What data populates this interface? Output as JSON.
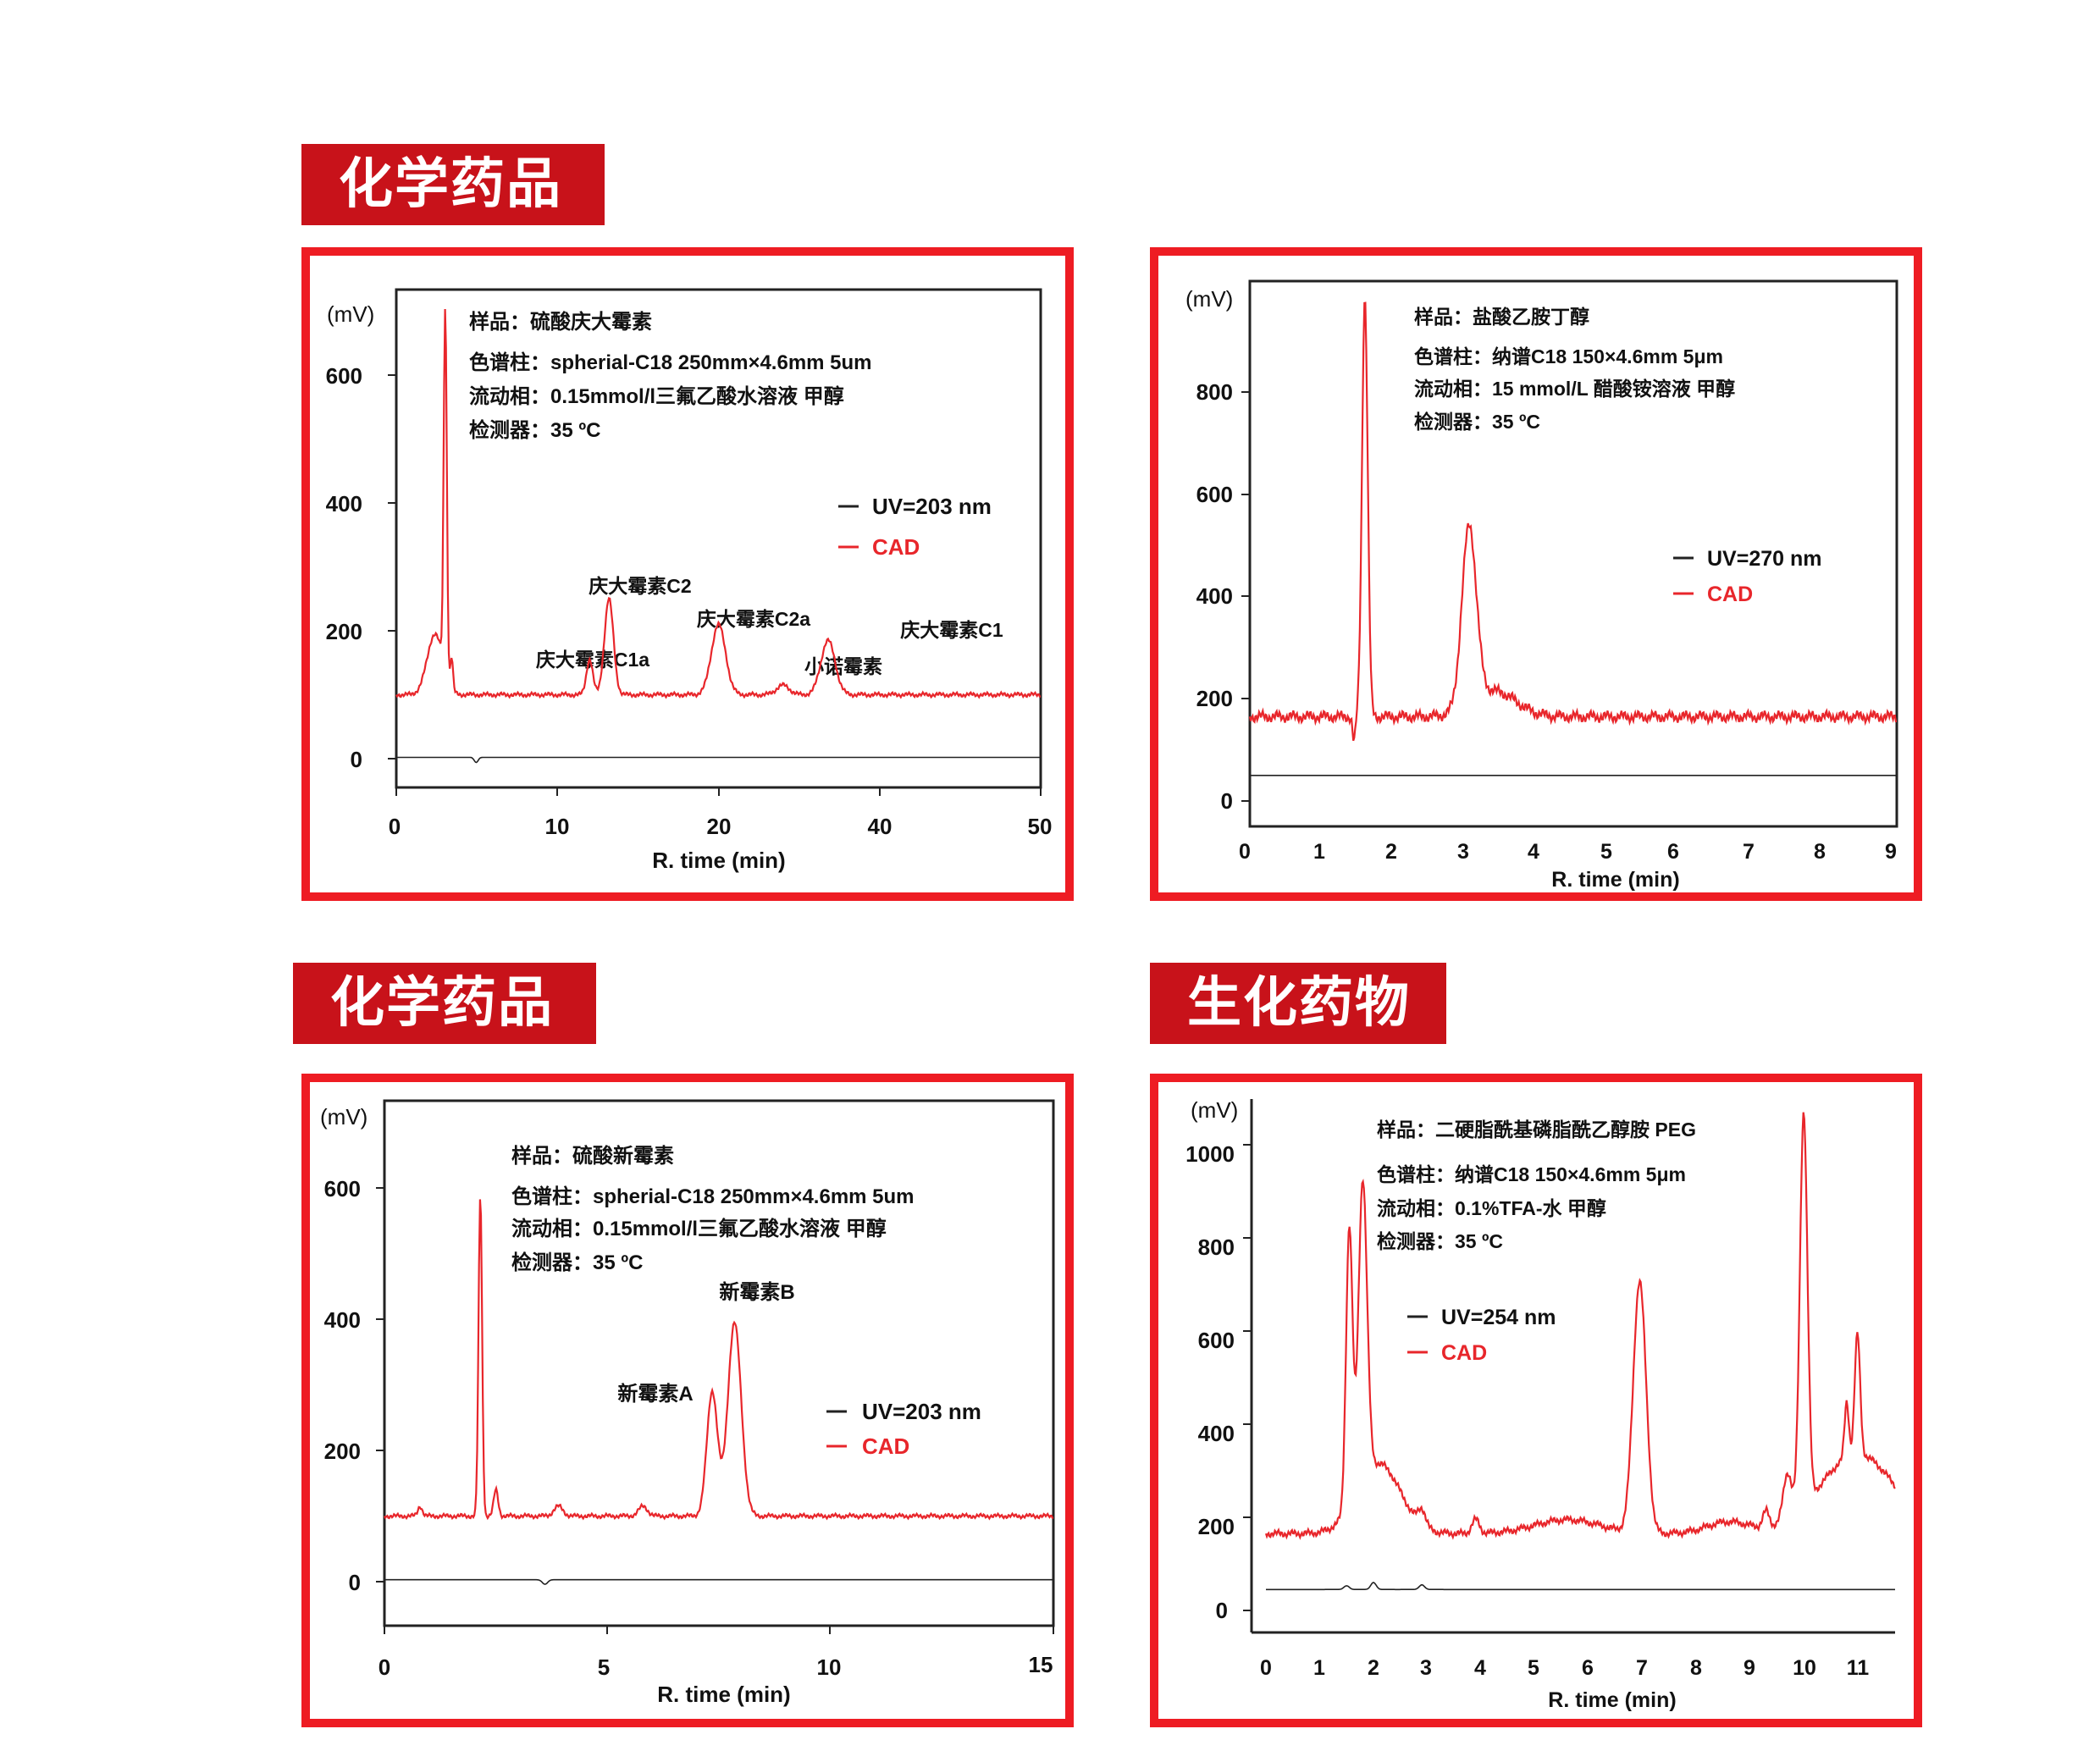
{
  "sections": [
    {
      "label": "化学药品"
    },
    {
      "label": "化学药品"
    },
    {
      "label": "生化药物"
    }
  ],
  "colors": {
    "accent": "#c8121a",
    "panel_border": "#ee1c23",
    "cad": "#e8262b",
    "uv": "#222222"
  },
  "chart_data": [
    {
      "type": "line",
      "ylabel": "(mV)",
      "xlabel": "R. time (min)",
      "yticks": [
        "0",
        "200",
        "400",
        "600"
      ],
      "xticks": [
        "0",
        "10",
        "20",
        "40",
        "50"
      ],
      "info": {
        "sample": "样品：硫酸庆大霉素",
        "column": "色谱柱：spherial-C18  250mm×4.6mm  5um",
        "mobile": "流动相：0.15mmol/l三氟乙酸水溶液   甲醇",
        "detector": "检测器：35 ºC"
      },
      "legend": [
        "UV=203 nm",
        "CAD"
      ],
      "annotations": [
        "庆大霉素C1a",
        "庆大霉素C2",
        "庆大霉素C2a",
        "小诺霉素",
        "庆大霉素C1"
      ],
      "series": [
        {
          "name": "CAD",
          "baseline": 100,
          "peaks": [
            [
              3,
              95,
              0.6
            ],
            [
              3.8,
              570,
              0.12
            ],
            [
              4.3,
              50,
              0.1
            ],
            [
              15,
              55,
              0.25
            ],
            [
              16.5,
              150,
              0.35
            ],
            [
              25,
              110,
              0.55
            ],
            [
              30,
              15,
              0.5
            ],
            [
              33.5,
              85,
              0.55
            ]
          ]
        },
        {
          "name": "UV=203 nm",
          "baseline": 2,
          "peaks": [
            [
              6.2,
              -8,
              0.15
            ]
          ]
        }
      ]
    },
    {
      "type": "line",
      "ylabel": "(mV)",
      "xlabel": "R. time (min)",
      "yticks": [
        "0",
        "200",
        "400",
        "600",
        "800"
      ],
      "xticks": [
        "0",
        "1",
        "2",
        "3",
        "4",
        "5",
        "6",
        "7",
        "8",
        "9"
      ],
      "info": {
        "sample": "样品：盐酸乙胺丁醇",
        "column": "色谱柱：纳谱C18   150×4.6mm  5μm",
        "mobile": "流动相：15 mmol/L 醋酸铵溶液   甲醇",
        "detector": "检测器：35 ºC"
      },
      "legend": [
        "UV=270 nm",
        "CAD"
      ],
      "series": [
        {
          "name": "CAD",
          "baseline": 165,
          "peaks": [
            [
              1.6,
              820,
              0.04
            ],
            [
              1.45,
              -50,
              0.02
            ],
            [
              3.05,
              350,
              0.1
            ],
            [
              3.4,
              50,
              0.3
            ]
          ]
        },
        {
          "name": "UV=270 nm",
          "baseline": 50,
          "peaks": []
        }
      ]
    },
    {
      "type": "line",
      "ylabel": "(mV)",
      "xlabel": "R. time (min)",
      "yticks": [
        "0",
        "200",
        "400",
        "600"
      ],
      "xticks": [
        "0",
        "5",
        "10",
        "15"
      ],
      "info": {
        "sample": "样品：硫酸新霉素",
        "column": "色谱柱：spherial-C18  250mm×4.6mm  5um",
        "mobile": "流动相：0.15mmol/l三氟乙酸水溶液   甲醇",
        "detector": "检测器：35 ºC"
      },
      "legend": [
        "UV=203 nm",
        "CAD"
      ],
      "annotations": [
        "新霉素A",
        "新霉素B"
      ],
      "series": [
        {
          "name": "CAD",
          "baseline": 100,
          "peaks": [
            [
              0.8,
              15,
              0.05
            ],
            [
              2.15,
              490,
              0.04
            ],
            [
              2.5,
              40,
              0.05
            ],
            [
              3.9,
              15,
              0.1
            ],
            [
              5.8,
              15,
              0.1
            ],
            [
              7.35,
              190,
              0.12
            ],
            [
              7.85,
              295,
              0.15
            ]
          ]
        },
        {
          "name": "UV=203 nm",
          "baseline": 3,
          "peaks": [
            [
              3.6,
              -7,
              0.06
            ]
          ]
        }
      ]
    },
    {
      "type": "line",
      "ylabel": "(mV)",
      "xlabel": "R. time (min)",
      "yticks": [
        "0",
        "200",
        "400",
        "600",
        "800",
        "1000"
      ],
      "xticks": [
        "0",
        "1",
        "2",
        "3",
        "4",
        "5",
        "6",
        "7",
        "8",
        "9",
        "10",
        "11"
      ],
      "info": {
        "sample": "样品：二硬脂酰基磷脂酰乙醇胺 PEG",
        "column": "色谱柱：纳谱C18  150×4.6mm  5μm",
        "mobile": "流动相：0.1%TFA-水  甲醇",
        "detector": "检测器：35 ºC"
      },
      "legend": [
        "UV=254 nm",
        "CAD"
      ],
      "series": [
        {
          "name": "CAD",
          "baseline": 165,
          "peaks": [
            [
              1.55,
              600,
              0.06
            ],
            [
              1.8,
              650,
              0.08
            ],
            [
              2.1,
              150,
              0.4
            ],
            [
              2.9,
              35,
              0.07
            ],
            [
              3.9,
              30,
              0.07
            ],
            [
              5.6,
              30,
              0.6
            ],
            [
              6.95,
              540,
              0.12
            ],
            [
              8.6,
              25,
              0.4
            ],
            [
              9.3,
              35,
              0.06
            ],
            [
              9.7,
              100,
              0.08
            ],
            [
              10,
              845,
              0.07
            ],
            [
              10.8,
              120,
              0.04
            ],
            [
              11,
              260,
              0.05
            ],
            [
              11,
              170,
              0.7
            ]
          ]
        },
        {
          "name": "UV=254 nm",
          "baseline": 45,
          "peaks": [
            [
              1.5,
              8,
              0.05
            ],
            [
              2,
              15,
              0.05
            ],
            [
              2.9,
              10,
              0.05
            ]
          ]
        }
      ]
    }
  ]
}
